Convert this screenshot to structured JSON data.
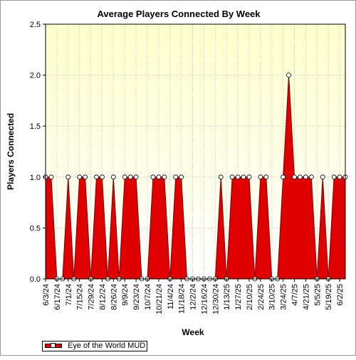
{
  "chart_data": {
    "type": "area",
    "title": "Average Players Connected By Week",
    "xlabel": "Week",
    "ylabel": "Players Connected",
    "ylim": [
      0,
      2.5
    ],
    "yticks": [
      "0.0",
      "0.5",
      "1.0",
      "1.5",
      "2.0",
      "2.5"
    ],
    "x_tick_labels": [
      "6/3/24",
      "6/17/24",
      "7/1/24",
      "7/15/24",
      "7/29/24",
      "8/12/24",
      "8/26/24",
      "9/9/24",
      "9/23/24",
      "10/7/24",
      "10/21/24",
      "11/4/24",
      "11/18/24",
      "12/2/24",
      "12/16/24",
      "12/30/24",
      "1/13/25",
      "1/27/25",
      "2/10/25",
      "2/24/25",
      "3/10/25",
      "3/24/25",
      "4/7/25",
      "4/21/25",
      "5/5/25",
      "5/19/25",
      "6/2/25"
    ],
    "grid": true,
    "legend": "bottom-left",
    "series": [
      {
        "name": "Eye of the World MUD",
        "color": "#e00000",
        "values": [
          1,
          1,
          0,
          0,
          1,
          0,
          1,
          1,
          0,
          1,
          1,
          0,
          1,
          0,
          1,
          1,
          1,
          0,
          0,
          1,
          1,
          1,
          0,
          1,
          1,
          0,
          0,
          0,
          0,
          0,
          0,
          1,
          0,
          1,
          1,
          1,
          1,
          0,
          1,
          1,
          0,
          0,
          1,
          2,
          1,
          1,
          1,
          1,
          0,
          1,
          0,
          1,
          1,
          1
        ]
      }
    ]
  }
}
